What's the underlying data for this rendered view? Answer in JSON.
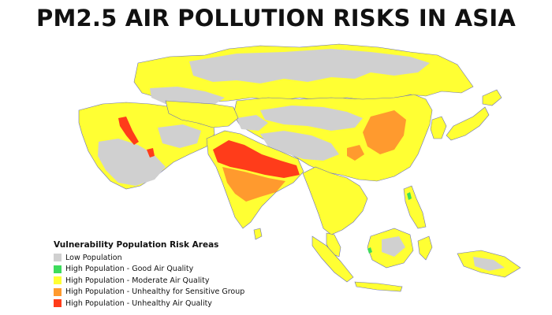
{
  "title": "PM2.5 AIR POLLUTION RISKS IN ASIA",
  "legend": {
    "title": "Vulnerability Population Risk Areas",
    "items": [
      {
        "label": "Low Population",
        "color": "#d0d0d0"
      },
      {
        "label": "High Population - Good Air Quality",
        "color": "#3ddc5c"
      },
      {
        "label": "High Population - Moderate Air Quality",
        "color": "#ffff33"
      },
      {
        "label": "High Population - Unhealthy for Sensitive Group",
        "color": "#ff9a2e"
      },
      {
        "label": "High Population - Unhealthy Air Quality",
        "color": "#ff3c1a"
      }
    ]
  },
  "colors": {
    "low": "#d0d0d0",
    "good": "#3ddc5c",
    "moderate": "#ffff33",
    "sensitive": "#ff9a2e",
    "unhealthy": "#ff3c1a",
    "border": "#6a6fb8"
  }
}
